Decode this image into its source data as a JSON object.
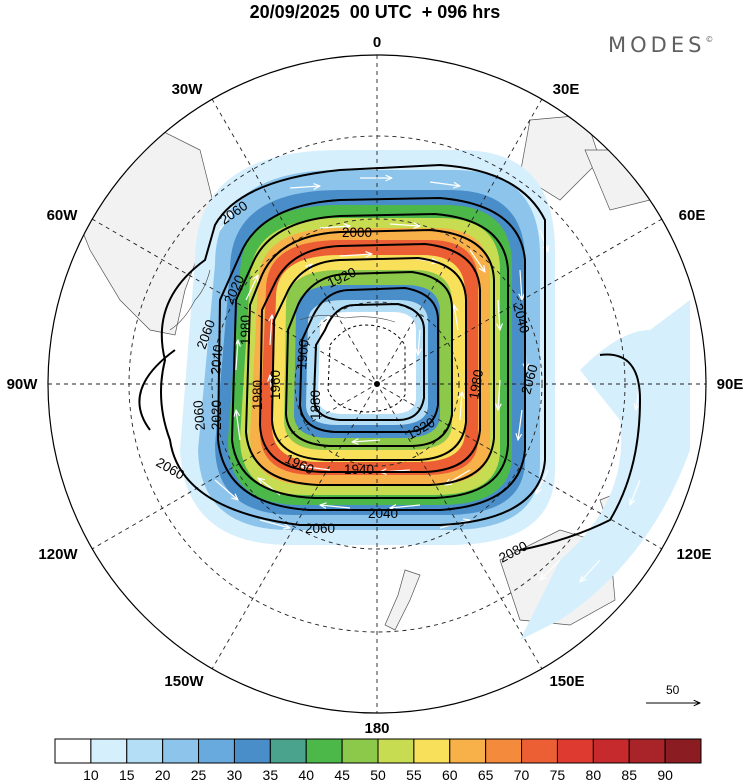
{
  "header": {
    "title": "20/09/2025  00 UTC  + 096 hrs",
    "brand": "MODES",
    "brand_mark": "©"
  },
  "map": {
    "projection": "polar stereographic, south pole",
    "longitude_labels": [
      "0",
      "30E",
      "60E",
      "90E",
      "120E",
      "150E",
      "180",
      "150W",
      "120W",
      "90W",
      "60W",
      "30W"
    ]
  },
  "contours": {
    "variable": "geopotential height",
    "labels": [
      "2060",
      "2060",
      "2060",
      "2060",
      "2060",
      "2060",
      "2040",
      "2040",
      "2040",
      "2020",
      "2020",
      "2000",
      "1980",
      "1980",
      "1980",
      "1960",
      "1960",
      "1940",
      "1920",
      "1920",
      "1900",
      "1880",
      "2080"
    ]
  },
  "wind_vector": {
    "reference_value": "50"
  },
  "colorbar": {
    "labels": [
      "10",
      "15",
      "20",
      "25",
      "30",
      "35",
      "40",
      "45",
      "50",
      "55",
      "60",
      "65",
      "70",
      "75",
      "80",
      "85",
      "90"
    ],
    "colors": [
      "#ffffff",
      "#d6effc",
      "#b4ddf6",
      "#8cc4ec",
      "#68a9de",
      "#4a8ec9",
      "#4aa38c",
      "#4cb84a",
      "#8cc94a",
      "#c8dc52",
      "#f8e05a",
      "#f8b048",
      "#f48a3c",
      "#ec5e34",
      "#de3a30",
      "#c62a2c",
      "#a82428",
      "#8a1c22"
    ]
  }
}
